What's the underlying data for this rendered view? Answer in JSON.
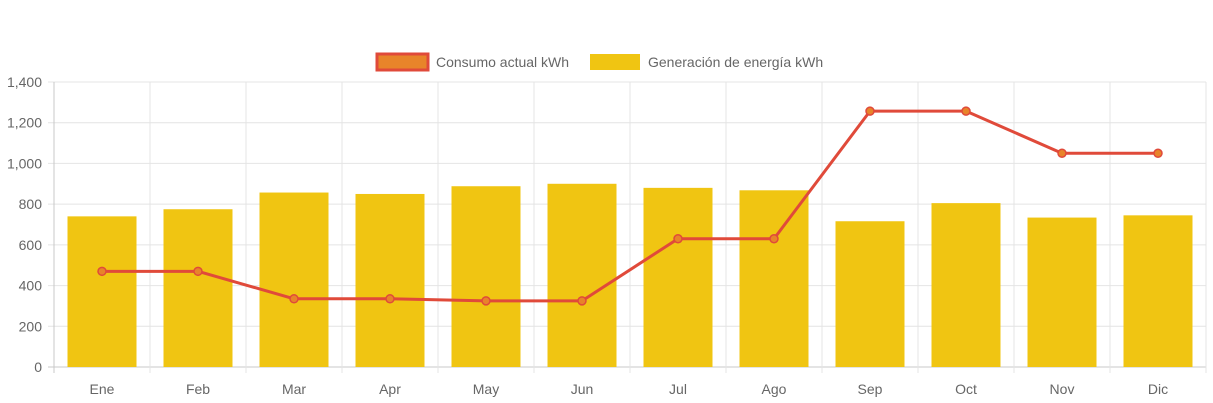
{
  "chart_data": {
    "type": "bar",
    "title": "",
    "xlabel": "",
    "ylabel": "",
    "categories": [
      "Ene",
      "Feb",
      "Mar",
      "Apr",
      "May",
      "Jun",
      "Jul",
      "Ago",
      "Sep",
      "Oct",
      "Nov",
      "Dic"
    ],
    "ylim": [
      0,
      1400
    ],
    "yticks": [
      0,
      200,
      400,
      600,
      800,
      1000,
      1200,
      1400
    ],
    "ytick_labels": [
      "0",
      "200",
      "400",
      "600",
      "800",
      "1,000",
      "1,200",
      "1,400"
    ],
    "grid": true,
    "legend_position": "top-center",
    "series": [
      {
        "name": "Consumo actual kWh",
        "type": "line",
        "color": "#e04a3a",
        "point_color": "#e8842a",
        "values": [
          470,
          470,
          335,
          335,
          325,
          325,
          630,
          630,
          1257,
          1257,
          1050,
          1050
        ]
      },
      {
        "name": "Generación de energía kWh",
        "type": "bar",
        "color": "#f0c512",
        "values": [
          740,
          775,
          857,
          850,
          888,
          900,
          880,
          868,
          716,
          805,
          734,
          745
        ]
      }
    ]
  }
}
